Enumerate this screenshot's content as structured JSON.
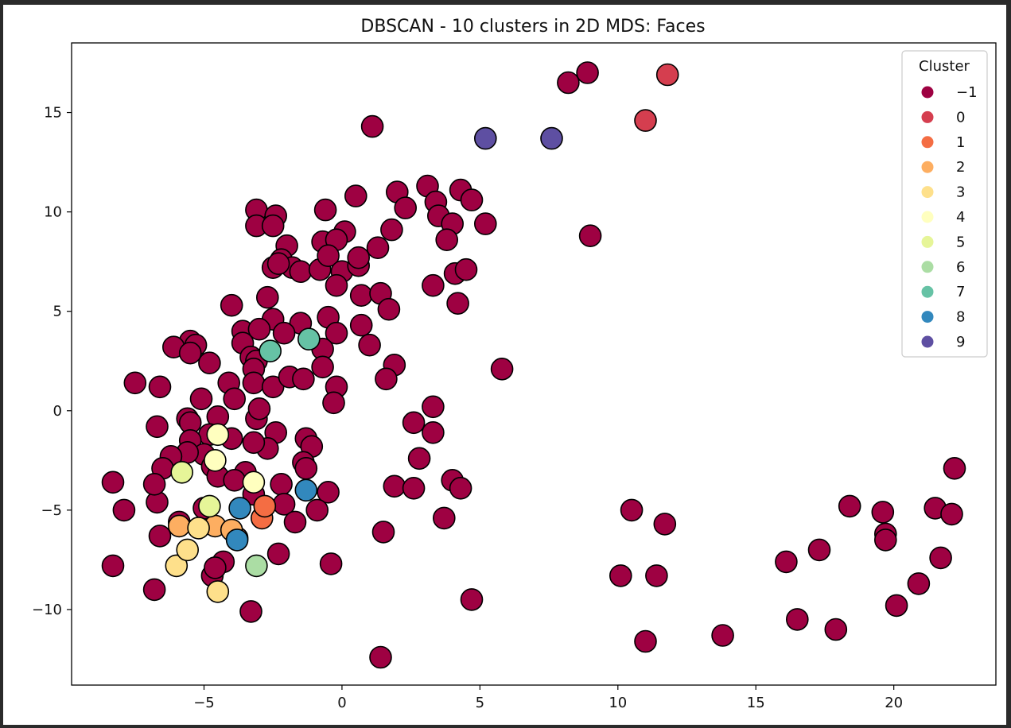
{
  "chart_data": {
    "type": "scatter",
    "title": "DBSCAN - 10 clusters in 2D MDS: Faces",
    "xlabel": "",
    "ylabel": "",
    "xlim": [
      -9.8,
      23.7
    ],
    "ylim": [
      -13.8,
      18.5
    ],
    "xticks": [
      -5,
      0,
      5,
      10,
      15,
      20
    ],
    "yticks": [
      -10,
      -5,
      0,
      5,
      10,
      15
    ],
    "xtick_labels": [
      "−5",
      "0",
      "5",
      "10",
      "15",
      "20"
    ],
    "ytick_labels": [
      "−10",
      "−5",
      "0",
      "5",
      "10",
      "15"
    ],
    "grid": false,
    "legend": {
      "title": "Cluster",
      "placement": "top-right",
      "entries": [
        {
          "label": "−1",
          "color": "#9e0142"
        },
        {
          "label": "0",
          "color": "#d53e4f"
        },
        {
          "label": "1",
          "color": "#f46d43"
        },
        {
          "label": "2",
          "color": "#fdae61"
        },
        {
          "label": "3",
          "color": "#fee08b"
        },
        {
          "label": "4",
          "color": "#ffffbf"
        },
        {
          "label": "5",
          "color": "#e6f598"
        },
        {
          "label": "6",
          "color": "#abdda4"
        },
        {
          "label": "7",
          "color": "#66c2a5"
        },
        {
          "label": "8",
          "color": "#3288bd"
        },
        {
          "label": "9",
          "color": "#5e4fa2"
        }
      ]
    },
    "series": [
      {
        "cluster": "−1",
        "color": "#9e0142",
        "points": [
          [
            8.9,
            17.0
          ],
          [
            8.2,
            16.5
          ],
          [
            1.1,
            14.3
          ],
          [
            2.0,
            11.0
          ],
          [
            3.1,
            11.3
          ],
          [
            4.3,
            11.1
          ],
          [
            4.7,
            10.6
          ],
          [
            0.5,
            10.8
          ],
          [
            -3.1,
            10.1
          ],
          [
            -2.4,
            9.8
          ],
          [
            -3.1,
            9.3
          ],
          [
            -2.5,
            9.3
          ],
          [
            -0.6,
            10.1
          ],
          [
            2.3,
            10.2
          ],
          [
            3.4,
            10.5
          ],
          [
            3.5,
            9.8
          ],
          [
            4.0,
            9.4
          ],
          [
            5.2,
            9.4
          ],
          [
            0.1,
            9.0
          ],
          [
            1.8,
            9.1
          ],
          [
            9.0,
            8.8
          ],
          [
            -2.0,
            8.3
          ],
          [
            -0.7,
            8.5
          ],
          [
            -0.2,
            8.6
          ],
          [
            3.8,
            8.6
          ],
          [
            1.3,
            8.2
          ],
          [
            -2.2,
            7.6
          ],
          [
            -2.5,
            7.2
          ],
          [
            -1.8,
            7.2
          ],
          [
            -1.5,
            7.0
          ],
          [
            -0.8,
            7.1
          ],
          [
            -0.5,
            7.8
          ],
          [
            0.0,
            7.0
          ],
          [
            0.6,
            7.3
          ],
          [
            0.6,
            7.7
          ],
          [
            4.1,
            6.9
          ],
          [
            4.5,
            7.1
          ],
          [
            -2.3,
            7.4
          ],
          [
            -0.2,
            6.3
          ],
          [
            3.3,
            6.3
          ],
          [
            0.7,
            5.8
          ],
          [
            1.4,
            5.9
          ],
          [
            -2.7,
            5.7
          ],
          [
            -4.0,
            5.3
          ],
          [
            1.7,
            5.1
          ],
          [
            4.2,
            5.4
          ],
          [
            -2.5,
            4.6
          ],
          [
            -0.5,
            4.7
          ],
          [
            -1.5,
            4.4
          ],
          [
            0.7,
            4.3
          ],
          [
            -3.6,
            4.0
          ],
          [
            -3.0,
            4.1
          ],
          [
            -0.2,
            3.9
          ],
          [
            -2.1,
            3.9
          ],
          [
            -3.6,
            3.4
          ],
          [
            -5.5,
            3.5
          ],
          [
            -6.1,
            3.2
          ],
          [
            -5.3,
            3.3
          ],
          [
            -5.5,
            2.9
          ],
          [
            -3.3,
            2.7
          ],
          [
            -3.1,
            2.5
          ],
          [
            -3.2,
            2.1
          ],
          [
            -4.8,
            2.4
          ],
          [
            -0.7,
            3.1
          ],
          [
            -0.7,
            2.2
          ],
          [
            1.0,
            3.3
          ],
          [
            1.9,
            2.3
          ],
          [
            5.8,
            2.1
          ],
          [
            -7.5,
            1.4
          ],
          [
            -6.6,
            1.2
          ],
          [
            -4.1,
            1.4
          ],
          [
            -3.9,
            0.6
          ],
          [
            -3.2,
            1.4
          ],
          [
            -2.5,
            1.2
          ],
          [
            -1.9,
            1.7
          ],
          [
            -1.4,
            1.6
          ],
          [
            -0.2,
            1.2
          ],
          [
            -0.3,
            0.4
          ],
          [
            -5.1,
            0.6
          ],
          [
            1.6,
            1.6
          ],
          [
            -6.7,
            -0.8
          ],
          [
            -5.6,
            -0.4
          ],
          [
            -5.5,
            -0.6
          ],
          [
            -4.5,
            -0.3
          ],
          [
            -3.1,
            -0.4
          ],
          [
            -3.0,
            0.1
          ],
          [
            -2.4,
            -1.1
          ],
          [
            -1.3,
            -1.4
          ],
          [
            -1.1,
            -1.8
          ],
          [
            -2.7,
            -1.9
          ],
          [
            -3.2,
            -1.6
          ],
          [
            -4.0,
            -1.4
          ],
          [
            -4.8,
            -1.2
          ],
          [
            -5.5,
            -1.5
          ],
          [
            -5.0,
            -2.2
          ],
          [
            -5.6,
            -2.1
          ],
          [
            -6.2,
            -2.3
          ],
          [
            -6.5,
            -2.9
          ],
          [
            -4.7,
            -2.8
          ],
          [
            -4.5,
            -3.3
          ],
          [
            -3.5,
            -3.1
          ],
          [
            -3.9,
            -3.5
          ],
          [
            -3.2,
            -4.2
          ],
          [
            -1.4,
            -2.6
          ],
          [
            -1.3,
            -2.9
          ],
          [
            -2.2,
            -3.7
          ],
          [
            -0.5,
            -4.1
          ],
          [
            -0.9,
            -5.0
          ],
          [
            -2.1,
            -4.7
          ],
          [
            -1.7,
            -5.6
          ],
          [
            -2.3,
            -7.2
          ],
          [
            -5.0,
            -4.9
          ],
          [
            -5.9,
            -5.6
          ],
          [
            -6.6,
            -6.3
          ],
          [
            -6.7,
            -4.6
          ],
          [
            -6.8,
            -3.7
          ],
          [
            -8.3,
            -3.6
          ],
          [
            -7.9,
            -5.0
          ],
          [
            -8.3,
            -7.8
          ],
          [
            -6.8,
            -9.0
          ],
          [
            -4.3,
            -7.6
          ],
          [
            -4.7,
            -8.3
          ],
          [
            -4.6,
            -7.9
          ],
          [
            -3.3,
            -10.1
          ],
          [
            -0.4,
            -7.7
          ],
          [
            2.6,
            -0.6
          ],
          [
            3.3,
            0.2
          ],
          [
            3.3,
            -1.1
          ],
          [
            2.8,
            -2.4
          ],
          [
            1.9,
            -3.8
          ],
          [
            2.6,
            -3.9
          ],
          [
            4.0,
            -3.5
          ],
          [
            4.3,
            -3.9
          ],
          [
            3.7,
            -5.4
          ],
          [
            1.5,
            -6.1
          ],
          [
            4.7,
            -9.5
          ],
          [
            1.4,
            -12.4
          ],
          [
            10.5,
            -5.0
          ],
          [
            11.7,
            -5.7
          ],
          [
            10.1,
            -8.3
          ],
          [
            11.4,
            -8.3
          ],
          [
            11.0,
            -11.6
          ],
          [
            13.8,
            -11.3
          ],
          [
            16.1,
            -7.6
          ],
          [
            17.3,
            -7.0
          ],
          [
            16.5,
            -10.5
          ],
          [
            17.9,
            -11.0
          ],
          [
            18.4,
            -4.8
          ],
          [
            19.6,
            -5.1
          ],
          [
            19.7,
            -6.2
          ],
          [
            19.7,
            -6.5
          ],
          [
            20.1,
            -9.8
          ],
          [
            20.9,
            -8.7
          ],
          [
            21.5,
            -4.9
          ],
          [
            21.7,
            -7.4
          ],
          [
            22.1,
            -5.2
          ],
          [
            22.2,
            -2.9
          ]
        ]
      },
      {
        "cluster": "0",
        "color": "#d53e4f",
        "points": [
          [
            11.8,
            16.9
          ],
          [
            11.0,
            14.6
          ]
        ]
      },
      {
        "cluster": "1",
        "color": "#f46d43",
        "points": [
          [
            -2.9,
            -5.4
          ],
          [
            -2.8,
            -4.8
          ],
          [
            -3.8,
            -6.4
          ]
        ]
      },
      {
        "cluster": "2",
        "color": "#fdae61",
        "points": [
          [
            -5.9,
            -5.8
          ],
          [
            -4.6,
            -5.8
          ],
          [
            -4.0,
            -6.0
          ]
        ]
      },
      {
        "cluster": "3",
        "color": "#fee08b",
        "points": [
          [
            -5.2,
            -5.9
          ],
          [
            -6.0,
            -7.8
          ],
          [
            -5.6,
            -7.0
          ],
          [
            -4.5,
            -9.1
          ]
        ]
      },
      {
        "cluster": "4",
        "color": "#ffffbf",
        "points": [
          [
            -4.5,
            -1.2
          ],
          [
            -4.6,
            -2.5
          ],
          [
            -3.2,
            -3.6
          ]
        ]
      },
      {
        "cluster": "5",
        "color": "#e6f598",
        "points": [
          [
            -5.8,
            -3.1
          ],
          [
            -4.8,
            -4.8
          ]
        ]
      },
      {
        "cluster": "6",
        "color": "#abdda4",
        "points": [
          [
            -3.1,
            -7.8
          ]
        ]
      },
      {
        "cluster": "7",
        "color": "#66c2a5",
        "points": [
          [
            -2.6,
            3.0
          ],
          [
            -1.2,
            3.6
          ]
        ]
      },
      {
        "cluster": "8",
        "color": "#3288bd",
        "points": [
          [
            -3.7,
            -4.9
          ],
          [
            -1.3,
            -4.0
          ],
          [
            -3.8,
            -6.5
          ]
        ]
      },
      {
        "cluster": "9",
        "color": "#5e4fa2",
        "points": [
          [
            5.2,
            13.7
          ],
          [
            7.6,
            13.7
          ]
        ]
      }
    ]
  }
}
